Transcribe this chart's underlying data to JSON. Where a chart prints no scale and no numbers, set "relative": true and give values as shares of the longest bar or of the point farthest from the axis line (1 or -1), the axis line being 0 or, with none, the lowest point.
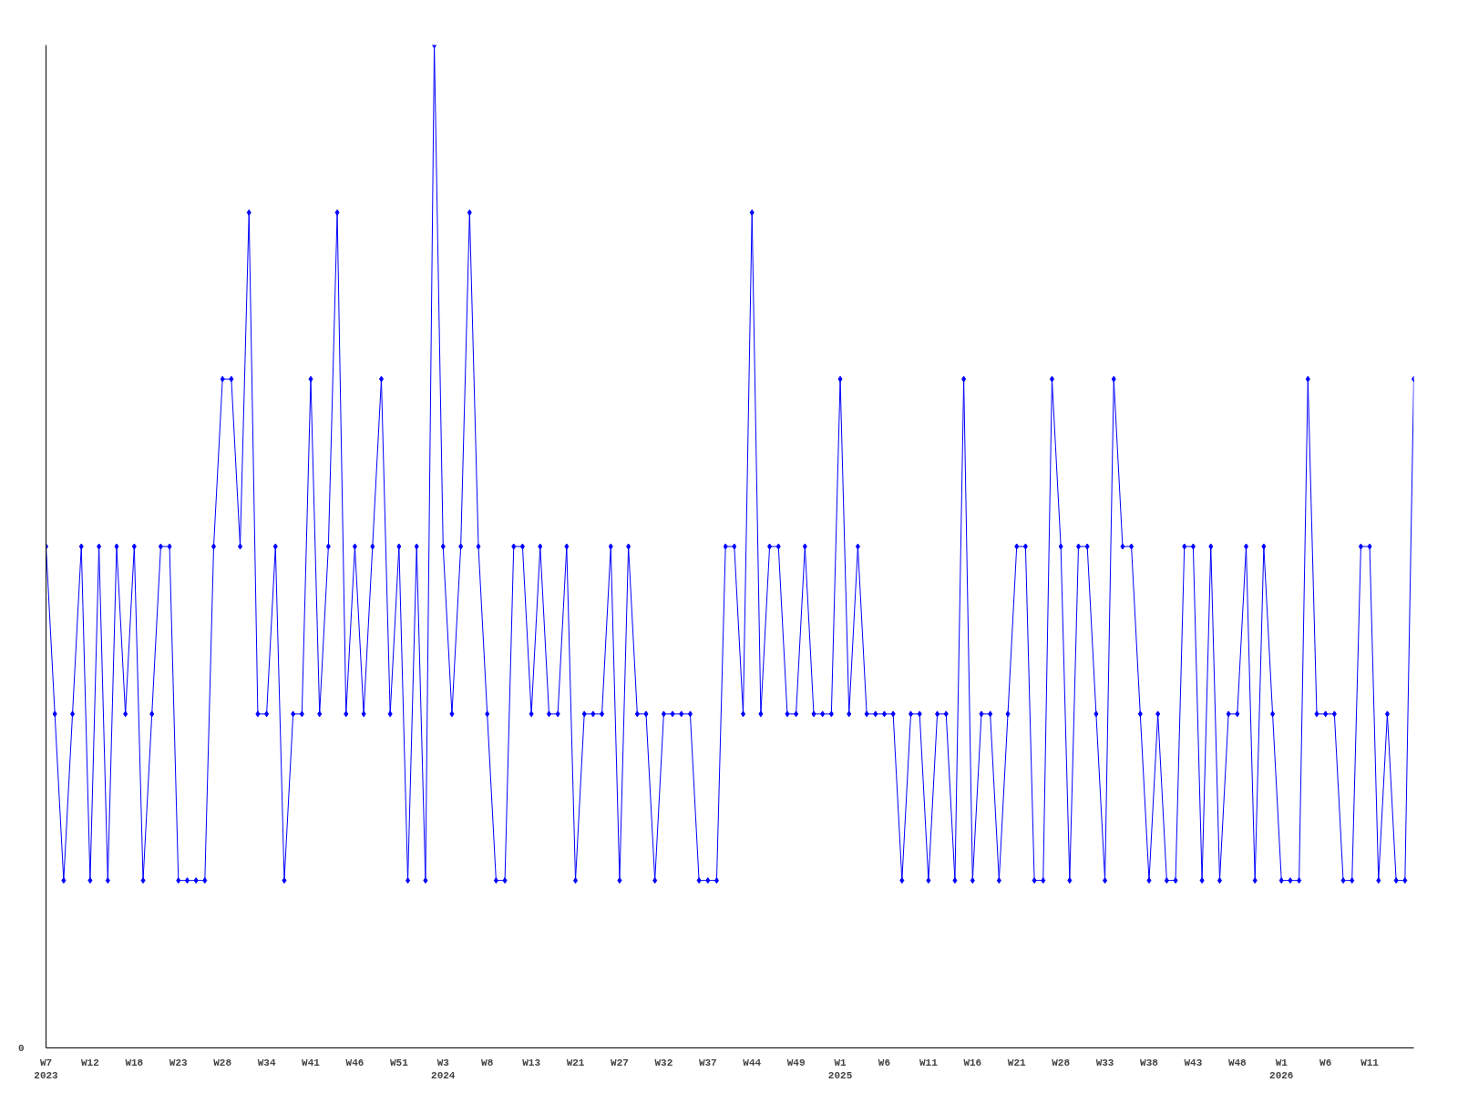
{
  "chart_data": {
    "type": "line",
    "relative": true,
    "marker": "diamond",
    "categories": [
      "W7\n2023",
      null,
      null,
      null,
      null,
      "W12",
      null,
      null,
      null,
      null,
      "W18",
      null,
      null,
      null,
      null,
      "W23",
      null,
      null,
      null,
      null,
      "W28",
      null,
      null,
      null,
      null,
      "W34",
      null,
      null,
      null,
      null,
      "W41",
      null,
      null,
      null,
      null,
      "W46",
      null,
      null,
      null,
      null,
      "W51",
      null,
      null,
      null,
      null,
      "W3\n2024",
      null,
      null,
      null,
      null,
      "W8",
      null,
      null,
      null,
      null,
      "W13",
      null,
      null,
      null,
      null,
      "W21",
      null,
      null,
      null,
      null,
      "W27",
      null,
      null,
      null,
      null,
      "W32",
      null,
      null,
      null,
      null,
      "W37",
      null,
      null,
      null,
      null,
      "W44",
      null,
      null,
      null,
      null,
      "W49",
      null,
      null,
      null,
      null,
      "W1\n2025",
      null,
      null,
      null,
      null,
      "W6",
      null,
      null,
      null,
      null,
      "W11",
      null,
      null,
      null,
      null,
      "W16",
      null,
      null,
      null,
      null,
      "W21",
      null,
      null,
      null,
      null,
      "W28",
      null,
      null,
      null,
      null,
      "W33",
      null,
      null,
      null,
      null,
      "W38",
      null,
      null,
      null,
      null,
      "W43",
      null,
      null,
      null,
      null,
      "W48",
      null,
      null,
      null,
      null,
      "W1\n2026",
      null,
      null,
      null,
      null,
      "W6",
      null,
      null,
      null,
      null,
      "W11",
      null,
      null,
      null,
      null,
      null
    ],
    "series": [
      {
        "color": "#0000ff",
        "values": [
          0.5,
          0.333,
          0.167,
          0.333,
          0.5,
          0.167,
          0.5,
          0.167,
          0.5,
          0.333,
          0.5,
          0.167,
          0.333,
          0.5,
          0.5,
          0.167,
          0.167,
          0.167,
          0.167,
          0.5,
          0.667,
          0.667,
          0.5,
          0.833,
          0.333,
          0.333,
          0.5,
          0.167,
          0.333,
          0.333,
          0.667,
          0.333,
          0.5,
          0.833,
          0.333,
          0.5,
          0.333,
          0.5,
          0.667,
          0.333,
          0.5,
          0.167,
          0.5,
          0.167,
          1,
          0.5,
          0.333,
          0.5,
          0.833,
          0.5,
          0.333,
          0.167,
          0.167,
          0.5,
          0.5,
          0.333,
          0.5,
          0.333,
          0.333,
          0.5,
          0.167,
          0.333,
          0.333,
          0.333,
          0.5,
          0.167,
          0.5,
          0.333,
          0.333,
          0.167,
          0.333,
          0.333,
          0.333,
          0.333,
          0.167,
          0.167,
          0.167,
          0.5,
          0.5,
          0.333,
          0.833,
          0.333,
          0.5,
          0.5,
          0.333,
          0.333,
          0.5,
          0.333,
          0.333,
          0.333,
          0.667,
          0.333,
          0.5,
          0.333,
          0.333,
          0.333,
          0.333,
          0.167,
          0.333,
          0.333,
          0.167,
          0.333,
          0.333,
          0.167,
          0.667,
          0.167,
          0.333,
          0.333,
          0.167,
          0.333,
          0.5,
          0.5,
          0.167,
          0.167,
          0.667,
          0.5,
          0.167,
          0.5,
          0.5,
          0.333,
          0.167,
          0.667,
          0.5,
          0.5,
          0.333,
          0.167,
          0.333,
          0.167,
          0.167,
          0.5,
          0.5,
          0.167,
          0.5,
          0.167,
          0.333,
          0.333,
          0.5,
          0.167,
          0.5,
          0.333,
          0.167,
          0.167,
          0.167,
          0.667,
          0.333,
          0.333,
          0.333,
          0.167,
          0.167,
          0.5,
          0.5,
          0.167,
          0.333,
          0.167,
          0.167,
          0.667
        ]
      }
    ],
    "annotations": [
      "0"
    ]
  }
}
